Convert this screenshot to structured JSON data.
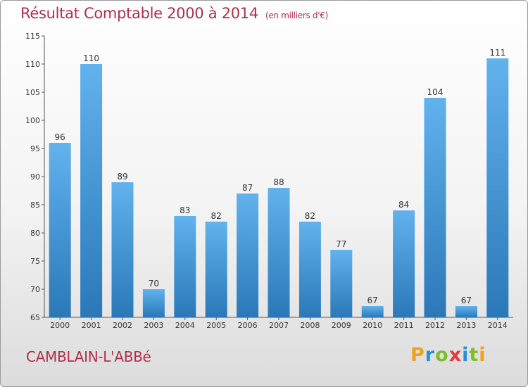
{
  "title": "Résultat Comptable 2000 à 2014",
  "subtitle": "(en milliers d'€)",
  "commune": "CAMBLAIN-L'ABBé",
  "logo": {
    "letters": [
      "P",
      "r",
      "o",
      "x",
      "i",
      "t",
      "i"
    ],
    "colors": [
      "#f2a21a",
      "#2a8fd6",
      "#7abf2a",
      "#e23a3a",
      "#2a8fd6",
      "#7abf2a",
      "#f2a21a"
    ]
  },
  "colors": {
    "bar_light": "#62b2ee",
    "bar_dark": "#2a78b8",
    "title": "#b0304a"
  },
  "chart_data": {
    "type": "bar",
    "categories": [
      "2000",
      "2001",
      "2002",
      "2003",
      "2004",
      "2005",
      "2006",
      "2007",
      "2008",
      "2009",
      "2010",
      "2011",
      "2012",
      "2013",
      "2014"
    ],
    "values": [
      96,
      110,
      89,
      70,
      83,
      82,
      87,
      88,
      82,
      77,
      67,
      84,
      104,
      67,
      111
    ],
    "ylim": [
      65,
      115
    ],
    "yticks": [
      65,
      70,
      75,
      80,
      85,
      90,
      95,
      100,
      105,
      110,
      115
    ],
    "grid": false,
    "xlabel": "",
    "ylabel": ""
  }
}
